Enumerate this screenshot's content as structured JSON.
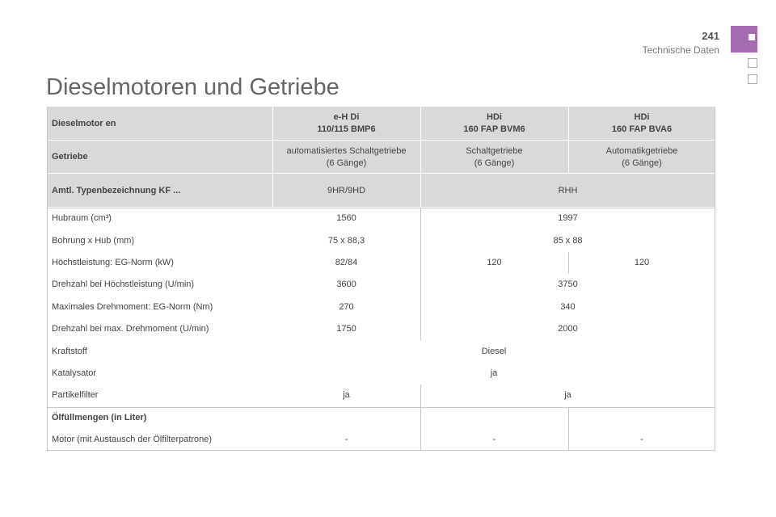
{
  "header": {
    "page_number": "241",
    "section": "Technische Daten"
  },
  "title": "Dieselmotoren und Getriebe",
  "table": {
    "rows": [
      [
        "Dieselmotor en",
        [
          "e-H Di",
          "110/115 BMP6"
        ],
        [
          "HDi",
          "160 FAP BVM6"
        ],
        [
          "HDi",
          "160 FAP BVA6"
        ]
      ],
      [
        "Getriebe",
        [
          "automatisiertes Schaltgetriebe",
          "(6 Gänge)"
        ],
        [
          "Schaltgetriebe",
          "(6 Gänge)"
        ],
        [
          "Automatikgetriebe",
          "(6 Gänge)"
        ]
      ],
      [
        "Amtl. Typenbezeichnung KF ...",
        "9HR/9HD",
        "RHH"
      ],
      [
        "Hubraum (cm³)",
        "1560",
        "1997"
      ],
      [
        "Bohrung x Hub (mm)",
        "75 x 88,3",
        "85 x 88"
      ],
      [
        "Höchstleistung: EG-Norm (kW)",
        "82/84",
        "120",
        "120"
      ],
      [
        "Drehzahl bei Höchstleistung (U/min)",
        "3600",
        "3750"
      ],
      [
        "Maximales Drehmoment: EG-Norm (Nm)",
        "270",
        "340"
      ],
      [
        "Drehzahl bei max. Drehmoment (U/min)",
        "1750",
        "2000"
      ],
      [
        "Kraftstoff",
        "Diesel"
      ],
      [
        "Katalysator",
        "ja"
      ],
      [
        "Partikelfilter",
        "ja",
        "ja"
      ],
      [
        "Ölfüllmengen (in Liter)"
      ],
      [
        "Motor (mit Austausch der Ölfilterpatrone)",
        "-",
        "-",
        "-"
      ]
    ]
  }
}
